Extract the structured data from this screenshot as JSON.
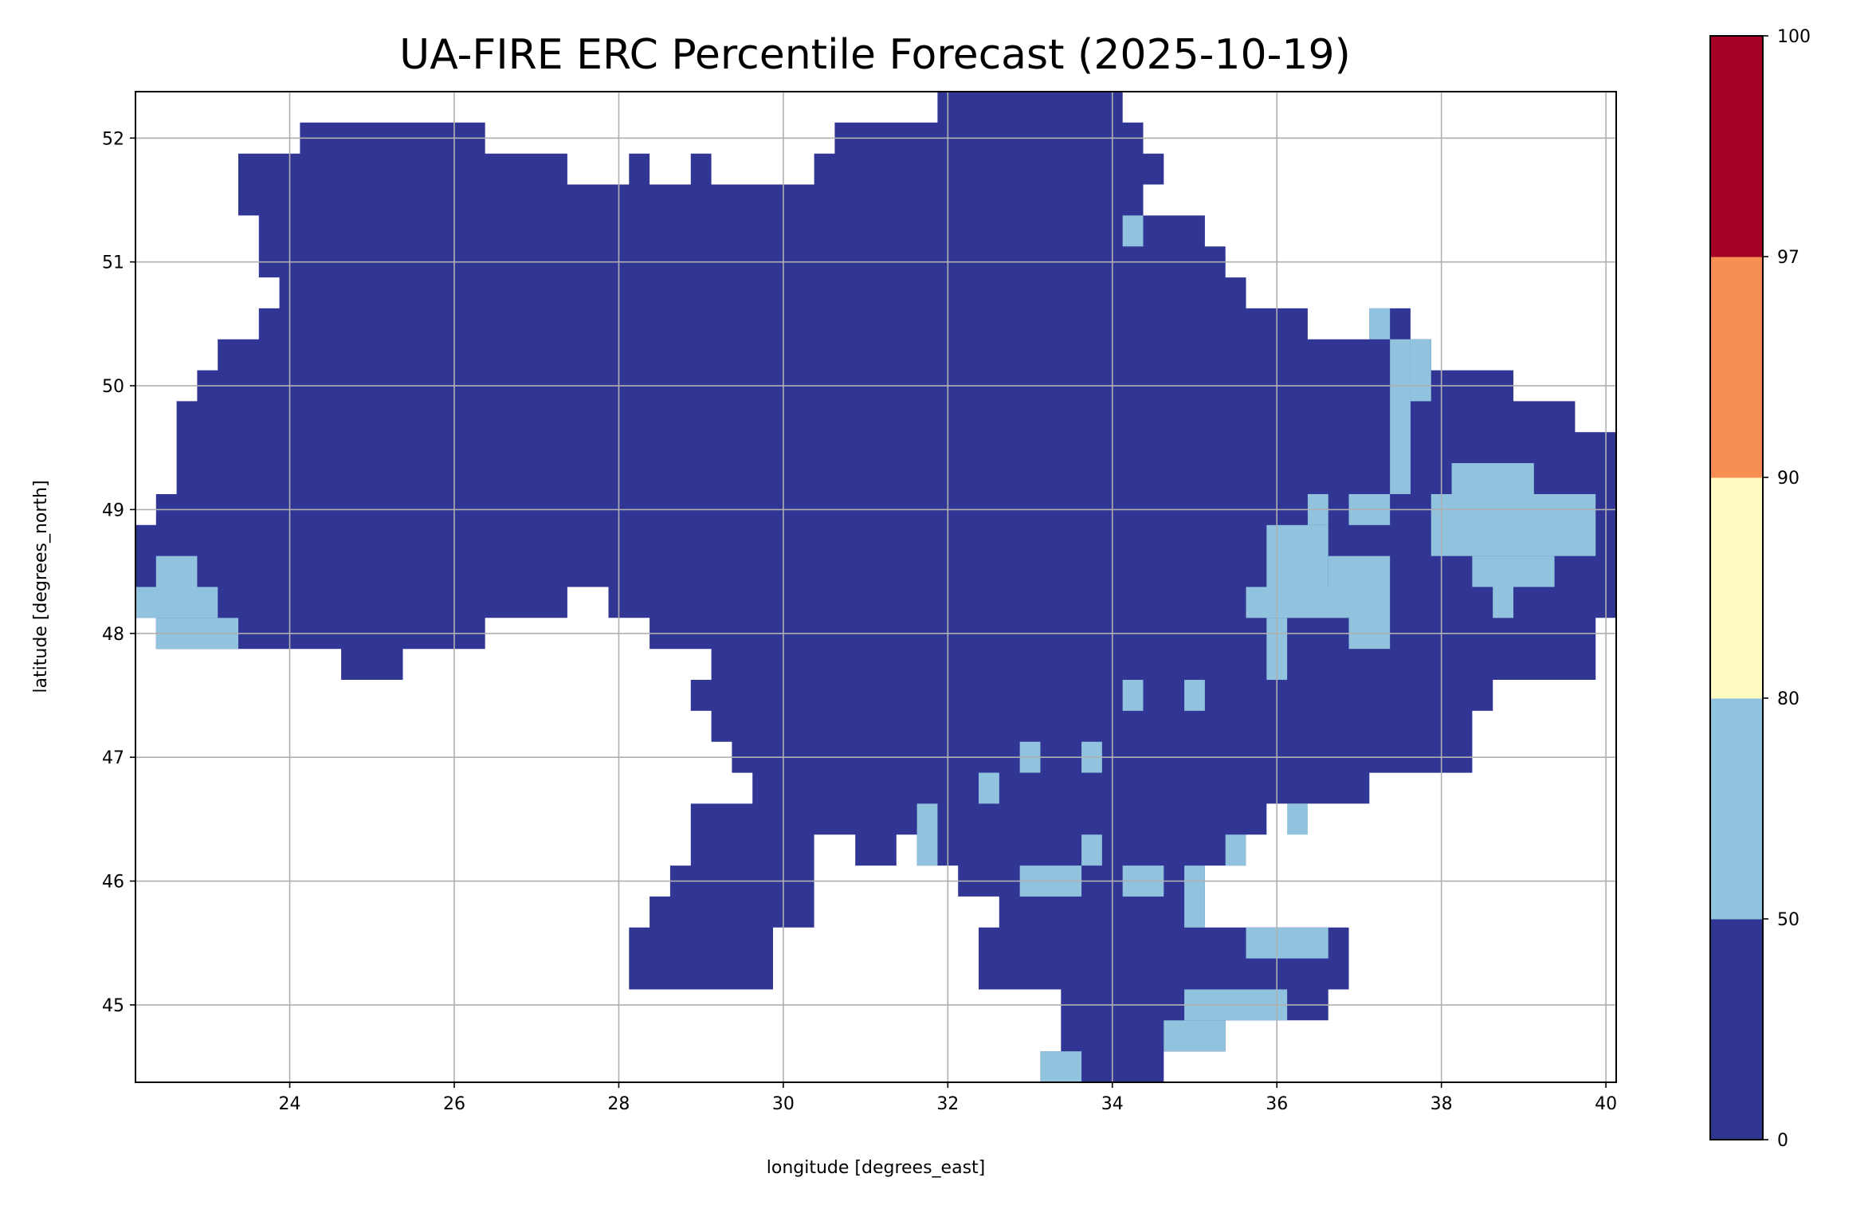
{
  "chart_data": {
    "type": "heatmap",
    "title": "UA-FIRE ERC Percentile Forecast (2025-10-19)",
    "xlabel": "longitude [degrees_east]",
    "ylabel": "latitude [degrees_north]",
    "xlim": [
      22.125,
      40.125
    ],
    "ylim": [
      44.375,
      52.375
    ],
    "xticks": [
      24,
      26,
      28,
      30,
      32,
      34,
      36,
      38,
      40
    ],
    "yticks": [
      45,
      46,
      47,
      48,
      49,
      50,
      51,
      52
    ],
    "grid": true,
    "grid_resolution_deg": 0.25,
    "colorbar": {
      "boundaries": [
        0,
        50,
        80,
        90,
        97,
        100
      ],
      "tick_labels": [
        "0",
        "50",
        "80",
        "90",
        "97",
        "100"
      ],
      "colors": [
        "#313695",
        "#91c3df",
        "#fefbc1",
        "#f88f52",
        "#a50026"
      ]
    },
    "base_category_color": "#313695",
    "mask_outline_lonlat": [
      [
        23.375,
        51.875
      ],
      [
        24.125,
        51.875
      ],
      [
        24.125,
        52.125
      ],
      [
        26.375,
        52.125
      ],
      [
        26.375,
        51.875
      ],
      [
        27.375,
        51.875
      ],
      [
        27.375,
        51.625
      ],
      [
        28.125,
        51.625
      ],
      [
        28.125,
        51.875
      ],
      [
        28.375,
        51.875
      ],
      [
        28.375,
        51.625
      ],
      [
        28.875,
        51.625
      ],
      [
        28.875,
        51.875
      ],
      [
        29.125,
        51.875
      ],
      [
        29.125,
        51.625
      ],
      [
        30.375,
        51.625
      ],
      [
        30.375,
        51.875
      ],
      [
        30.625,
        51.875
      ],
      [
        30.625,
        52.125
      ],
      [
        31.875,
        52.125
      ],
      [
        31.875,
        52.375
      ],
      [
        34.125,
        52.375
      ],
      [
        34.125,
        52.125
      ],
      [
        34.375,
        52.125
      ],
      [
        34.375,
        51.875
      ],
      [
        34.625,
        51.875
      ],
      [
        34.625,
        51.625
      ],
      [
        34.375,
        51.625
      ],
      [
        34.375,
        51.375
      ],
      [
        35.125,
        51.375
      ],
      [
        35.125,
        51.125
      ],
      [
        35.375,
        51.125
      ],
      [
        35.375,
        50.875
      ],
      [
        35.625,
        50.875
      ],
      [
        35.625,
        50.625
      ],
      [
        36.375,
        50.625
      ],
      [
        36.375,
        50.375
      ],
      [
        37.125,
        50.375
      ],
      [
        37.125,
        50.625
      ],
      [
        37.625,
        50.625
      ],
      [
        37.625,
        50.375
      ],
      [
        37.875,
        50.375
      ],
      [
        37.875,
        50.125
      ],
      [
        38.875,
        50.125
      ],
      [
        38.875,
        49.875
      ],
      [
        39.625,
        49.875
      ],
      [
        39.625,
        49.625
      ],
      [
        40.125,
        49.625
      ],
      [
        40.125,
        48.125
      ],
      [
        39.875,
        48.125
      ],
      [
        39.875,
        47.625
      ],
      [
        38.625,
        47.625
      ],
      [
        38.625,
        47.375
      ],
      [
        38.375,
        47.375
      ],
      [
        38.375,
        46.875
      ],
      [
        37.125,
        46.875
      ],
      [
        37.125,
        46.625
      ],
      [
        35.875,
        46.625
      ],
      [
        35.875,
        46.375
      ],
      [
        35.625,
        46.375
      ],
      [
        35.625,
        46.125
      ],
      [
        35.125,
        46.125
      ],
      [
        35.125,
        45.625
      ],
      [
        36.875,
        45.625
      ],
      [
        36.875,
        45.125
      ],
      [
        36.625,
        45.125
      ],
      [
        36.625,
        44.875
      ],
      [
        35.375,
        44.875
      ],
      [
        35.375,
        44.625
      ],
      [
        34.625,
        44.625
      ],
      [
        34.625,
        44.375
      ],
      [
        33.125,
        44.375
      ],
      [
        33.125,
        44.625
      ],
      [
        33.375,
        44.625
      ],
      [
        33.375,
        45.125
      ],
      [
        32.375,
        45.125
      ],
      [
        32.375,
        45.625
      ],
      [
        32.625,
        45.625
      ],
      [
        32.625,
        45.875
      ],
      [
        32.125,
        45.875
      ],
      [
        32.125,
        46.125
      ],
      [
        31.625,
        46.125
      ],
      [
        31.625,
        46.375
      ],
      [
        31.375,
        46.375
      ],
      [
        31.375,
        46.125
      ],
      [
        30.875,
        46.125
      ],
      [
        30.875,
        46.375
      ],
      [
        30.375,
        46.375
      ],
      [
        30.375,
        45.625
      ],
      [
        29.875,
        45.625
      ],
      [
        29.875,
        45.125
      ],
      [
        28.125,
        45.125
      ],
      [
        28.125,
        45.625
      ],
      [
        28.375,
        45.625
      ],
      [
        28.375,
        45.875
      ],
      [
        28.625,
        45.875
      ],
      [
        28.625,
        46.125
      ],
      [
        28.875,
        46.125
      ],
      [
        28.875,
        46.625
      ],
      [
        29.625,
        46.625
      ],
      [
        29.625,
        46.875
      ],
      [
        29.375,
        46.875
      ],
      [
        29.375,
        47.125
      ],
      [
        29.125,
        47.125
      ],
      [
        29.125,
        47.375
      ],
      [
        28.875,
        47.375
      ],
      [
        28.875,
        47.625
      ],
      [
        29.125,
        47.625
      ],
      [
        29.125,
        47.875
      ],
      [
        28.375,
        47.875
      ],
      [
        28.375,
        48.125
      ],
      [
        27.875,
        48.125
      ],
      [
        27.875,
        48.375
      ],
      [
        27.375,
        48.375
      ],
      [
        27.375,
        48.125
      ],
      [
        26.375,
        48.125
      ],
      [
        26.375,
        47.875
      ],
      [
        25.375,
        47.875
      ],
      [
        25.375,
        47.625
      ],
      [
        24.625,
        47.625
      ],
      [
        24.625,
        47.875
      ],
      [
        22.375,
        47.875
      ],
      [
        22.375,
        48.125
      ],
      [
        22.125,
        48.125
      ],
      [
        22.125,
        48.875
      ],
      [
        22.375,
        48.875
      ],
      [
        22.375,
        49.125
      ],
      [
        22.625,
        49.125
      ],
      [
        22.625,
        49.875
      ],
      [
        22.875,
        49.875
      ],
      [
        22.875,
        50.125
      ],
      [
        23.125,
        50.125
      ],
      [
        23.125,
        50.375
      ],
      [
        23.625,
        50.375
      ],
      [
        23.625,
        50.625
      ],
      [
        23.875,
        50.625
      ],
      [
        23.875,
        50.875
      ],
      [
        23.625,
        50.875
      ],
      [
        23.625,
        51.375
      ],
      [
        23.375,
        51.375
      ]
    ],
    "category_50_80_cells_lonlat": [
      [
        22.375,
        48.375,
        22.875,
        48.625
      ],
      [
        22.125,
        48.125,
        23.125,
        48.375
      ],
      [
        22.375,
        47.875,
        23.375,
        48.125
      ],
      [
        38.125,
        48.875,
        39.125,
        49.375
      ],
      [
        37.875,
        48.625,
        39.875,
        49.125
      ],
      [
        38.375,
        48.375,
        39.375,
        48.625
      ],
      [
        38.625,
        48.125,
        38.875,
        48.375
      ],
      [
        37.375,
        49.125,
        37.625,
        50.375
      ],
      [
        37.125,
        50.375,
        37.375,
        50.625
      ],
      [
        37.625,
        49.875,
        37.875,
        50.375
      ],
      [
        35.875,
        48.375,
        36.625,
        48.875
      ],
      [
        35.625,
        48.125,
        36.875,
        48.375
      ],
      [
        35.875,
        47.625,
        36.125,
        48.125
      ],
      [
        36.625,
        48.375,
        37.375,
        48.625
      ],
      [
        36.875,
        47.875,
        37.375,
        48.375
      ],
      [
        36.375,
        48.875,
        36.625,
        49.125
      ],
      [
        36.875,
        48.875,
        37.375,
        49.125
      ],
      [
        34.125,
        47.375,
        34.375,
        47.625
      ],
      [
        34.875,
        47.375,
        35.125,
        47.625
      ],
      [
        32.875,
        46.875,
        33.125,
        47.125
      ],
      [
        33.625,
        46.875,
        33.875,
        47.125
      ],
      [
        32.375,
        46.625,
        32.625,
        46.875
      ],
      [
        33.625,
        46.125,
        33.875,
        46.375
      ],
      [
        32.875,
        45.875,
        33.625,
        46.125
      ],
      [
        34.125,
        45.875,
        34.625,
        46.125
      ],
      [
        34.875,
        45.625,
        35.125,
        46.125
      ],
      [
        35.375,
        46.125,
        35.625,
        46.375
      ],
      [
        36.125,
        46.375,
        36.375,
        46.625
      ],
      [
        35.625,
        45.375,
        36.625,
        45.625
      ],
      [
        34.875,
        44.875,
        36.125,
        45.125
      ],
      [
        34.625,
        44.625,
        35.375,
        44.875
      ],
      [
        33.125,
        44.375,
        33.625,
        44.625
      ],
      [
        34.125,
        51.125,
        34.375,
        51.375
      ],
      [
        31.625,
        46.125,
        31.875,
        46.625
      ]
    ]
  }
}
